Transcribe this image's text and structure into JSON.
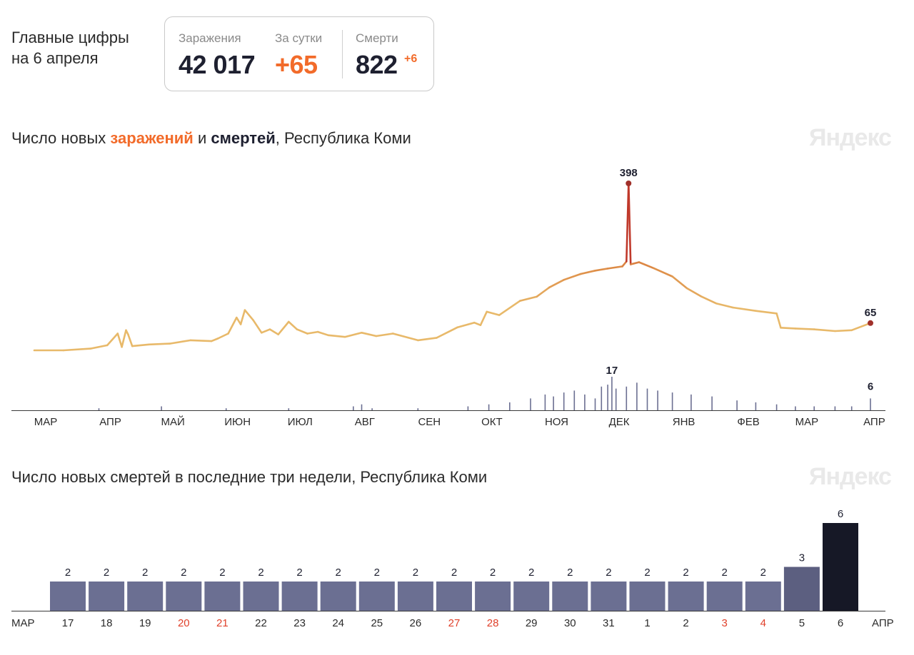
{
  "summary": {
    "title_line1": "Главные цифры",
    "title_line2": "на 6 апреля",
    "infections_label": "Заражения",
    "infections_value": "42 017",
    "daily_label": "За сутки",
    "daily_value": "+65",
    "deaths_label": "Смерти",
    "deaths_value": "822",
    "deaths_delta": "+6"
  },
  "watermark": "Яндекс",
  "chart1_title": {
    "part1": "Число новых ",
    "part2": "заражений",
    "part3": " и ",
    "part4": "смертей",
    "part5": ", Республика Коми"
  },
  "chart2_title": "Число новых смертей в последние три недели, Республика Коми",
  "colors": {
    "infections_low": "#e8b96a",
    "infections_mid": "#dd8a45",
    "infections_high": "#c0392b",
    "deaths_bar": "#6b6f92",
    "deaths_bar_mid": "#5c5f80",
    "deaths_bar_last": "#161826",
    "holiday_text": "#e0412b"
  },
  "chart_data": [
    {
      "type": "line",
      "title": "Число новых заражений и смертей, Республика Коми",
      "x_tick_labels": [
        "МАР",
        "АПР",
        "МАЙ",
        "ИЮН",
        "ИЮЛ",
        "АВГ",
        "СЕН",
        "ОКТ",
        "НОЯ",
        "ДЕК",
        "ЯНВ",
        "ФЕВ",
        "МАР",
        "АПР"
      ],
      "series": [
        {
          "label": "заражений",
          "x": [
            "2020-03-01",
            "2020-03-15",
            "2020-03-28",
            "2020-04-05",
            "2020-04-10",
            "2020-04-12",
            "2020-04-14",
            "2020-04-15",
            "2020-04-17",
            "2020-04-25",
            "2020-05-05",
            "2020-05-15",
            "2020-05-25",
            "2020-05-28",
            "2020-06-02",
            "2020-06-06",
            "2020-06-08",
            "2020-06-10",
            "2020-06-14",
            "2020-06-18",
            "2020-06-22",
            "2020-06-26",
            "2020-07-01",
            "2020-07-05",
            "2020-07-10",
            "2020-07-15",
            "2020-07-20",
            "2020-07-28",
            "2020-08-05",
            "2020-08-12",
            "2020-08-20",
            "2020-09-01",
            "2020-09-10",
            "2020-09-20",
            "2020-09-28",
            "2020-10-01",
            "2020-10-04",
            "2020-10-10",
            "2020-10-20",
            "2020-10-28",
            "2020-11-03",
            "2020-11-10",
            "2020-11-18",
            "2020-11-25",
            "2020-12-01",
            "2020-12-08",
            "2020-12-10",
            "2020-12-11",
            "2020-12-12",
            "2020-12-16",
            "2020-12-23",
            "2021-01-01",
            "2021-01-08",
            "2021-01-15",
            "2021-01-22",
            "2021-01-30",
            "2021-02-10",
            "2021-02-20",
            "2021-02-22",
            "2021-03-01",
            "2021-03-10",
            "2021-03-20",
            "2021-03-28",
            "2021-04-06"
          ],
          "y": [
            0,
            0,
            4,
            12,
            40,
            8,
            48,
            38,
            10,
            14,
            16,
            24,
            22,
            28,
            40,
            78,
            62,
            96,
            72,
            42,
            50,
            38,
            68,
            50,
            40,
            44,
            36,
            32,
            42,
            34,
            40,
            24,
            30,
            55,
            66,
            60,
            92,
            84,
            118,
            128,
            150,
            168,
            182,
            190,
            195,
            200,
            212,
            398,
            205,
            210,
            196,
            176,
            148,
            128,
            112,
            102,
            94,
            88,
            54,
            52,
            50,
            46,
            48,
            65
          ]
        },
        {
          "label": "смертей",
          "x": [
            "2020-04-01",
            "2020-05-01",
            "2020-06-01",
            "2020-07-01",
            "2020-08-01",
            "2020-08-05",
            "2020-08-10",
            "2020-09-01",
            "2020-09-25",
            "2020-10-05",
            "2020-10-15",
            "2020-10-25",
            "2020-11-01",
            "2020-11-05",
            "2020-11-10",
            "2020-11-15",
            "2020-11-20",
            "2020-11-25",
            "2020-11-28",
            "2020-12-01",
            "2020-12-03",
            "2020-12-05",
            "2020-12-10",
            "2020-12-15",
            "2020-12-20",
            "2020-12-25",
            "2021-01-01",
            "2021-01-10",
            "2021-01-20",
            "2021-02-01",
            "2021-02-10",
            "2021-02-20",
            "2021-03-01",
            "2021-03-10",
            "2021-03-20",
            "2021-03-28",
            "2021-04-06"
          ],
          "y": [
            1,
            2,
            1,
            1,
            2,
            3,
            1,
            1,
            2,
            3,
            4,
            6,
            8,
            7,
            9,
            10,
            8,
            6,
            12,
            13,
            17,
            11,
            12,
            14,
            11,
            10,
            9,
            8,
            7,
            5,
            4,
            3,
            2,
            2,
            2,
            2,
            6
          ]
        }
      ],
      "annotations": [
        {
          "x": "2020-12-11",
          "y": 398,
          "text": "398"
        },
        {
          "x": "2021-04-06",
          "y": 65,
          "text": "65"
        },
        {
          "x": "2020-12-03",
          "y": 17,
          "text": "17"
        },
        {
          "x": "2021-04-06",
          "y": 6,
          "text": "6"
        }
      ],
      "grid": false
    },
    {
      "type": "bar",
      "title": "Число новых смертей в последние три недели, Республика Коми",
      "categories": [
        "17",
        "18",
        "19",
        "20",
        "21",
        "22",
        "23",
        "24",
        "25",
        "26",
        "27",
        "28",
        "29",
        "30",
        "31",
        "1",
        "2",
        "3",
        "4",
        "5",
        "6"
      ],
      "holidays": [
        "20",
        "21",
        "27",
        "28",
        "3",
        "4"
      ],
      "month_start_label": "МАР",
      "month_end_label": "АПР",
      "series": [
        {
          "values": [
            2,
            2,
            2,
            2,
            2,
            2,
            2,
            2,
            2,
            2,
            2,
            2,
            2,
            2,
            2,
            2,
            2,
            2,
            2,
            3,
            6
          ]
        }
      ],
      "grid": false
    }
  ]
}
